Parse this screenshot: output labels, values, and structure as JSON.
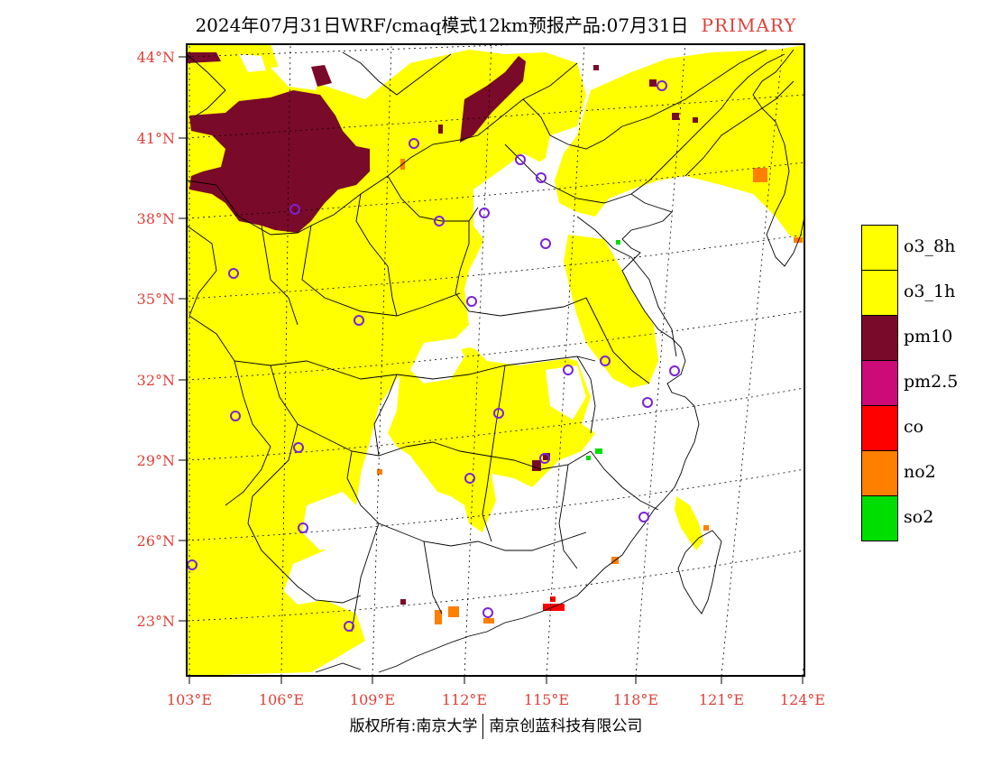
{
  "title": {
    "main": "2024年07月31日WRF/cmaq模式12km预报产品:07月31日",
    "tag": "PRIMARY"
  },
  "axes": {
    "lat_labels": [
      "44°N",
      "41°N",
      "38°N",
      "35°N",
      "32°N",
      "29°N",
      "26°N",
      "23°N"
    ],
    "lon_labels": [
      "103°E",
      "106°E",
      "109°E",
      "112°E",
      "115°E",
      "118°E",
      "121°E",
      "124°E"
    ],
    "lat_values": [
      44,
      41,
      38,
      35,
      32,
      29,
      26,
      23
    ],
    "lon_values": [
      103,
      106,
      109,
      112,
      115,
      118,
      121,
      124
    ]
  },
  "legend": {
    "items": [
      {
        "label": "o3_8h",
        "color": "#ffff00"
      },
      {
        "label": "o3_1h",
        "color": "#ffff00"
      },
      {
        "label": "pm10",
        "color": "#7a0a2a"
      },
      {
        "label": "pm2.5",
        "color": "#cc0a78"
      },
      {
        "label": "co",
        "color": "#ff0000"
      },
      {
        "label": "no2",
        "color": "#ff7f00"
      },
      {
        "label": "so2",
        "color": "#00dd00"
      }
    ]
  },
  "colors": {
    "o3": "#ffff00",
    "pm10": "#7a0a2a",
    "no2": "#ff7f00",
    "co": "#ff0000",
    "so2": "#00dd00",
    "station": "#7b22d8",
    "label": "#e0403a"
  },
  "copyright": {
    "left": "版权所有:南京大学",
    "right": "南京创蓝科技有限公司"
  }
}
